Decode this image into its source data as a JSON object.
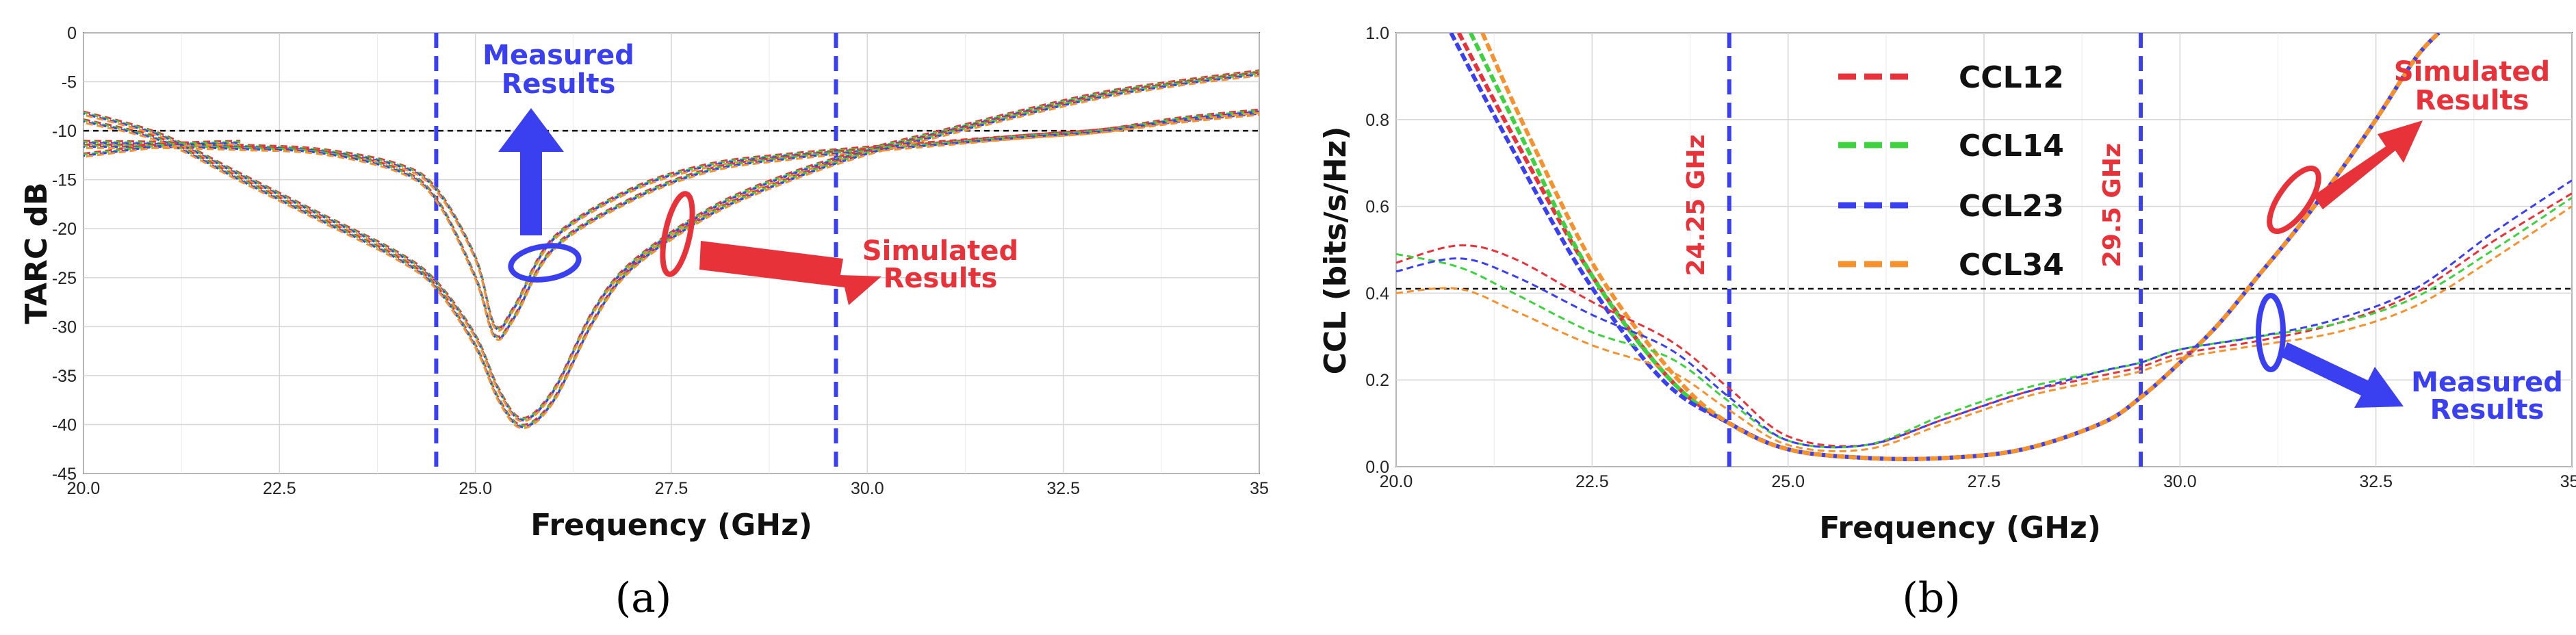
{
  "chart_data": [
    {
      "id": "a",
      "type": "line",
      "panel_label": "(a)",
      "xlabel": "Frequency (GHz)",
      "ylabel": "TARC dB",
      "xlim": [
        20,
        35
      ],
      "ylim": [
        -45,
        0
      ],
      "xticks": [
        "20.0",
        "22.5",
        "25.0",
        "27.5",
        "30.0",
        "32.5",
        "35"
      ],
      "yticks": [
        "0",
        "-5",
        "-10",
        "-15",
        "-20",
        "-25",
        "-30",
        "-35",
        "-40",
        "-45"
      ],
      "grid": true,
      "reference_line": {
        "y": -10,
        "color": "#111111",
        "style": "dashed"
      },
      "vlines": [
        {
          "x": 24.5,
          "color": "#3a3ff0"
        },
        {
          "x": 29.6,
          "color": "#3a3ff0"
        }
      ],
      "annotations": [
        {
          "text_lines": [
            "Measured",
            "Results"
          ],
          "color": "#3a3ff0",
          "group": "measured"
        },
        {
          "text_lines": [
            "Simulated",
            "Results"
          ],
          "color": "#e8323a",
          "group": "simulated"
        }
      ],
      "curve_colors": [
        "#e8323a",
        "#3fd13f",
        "#3a3ff0",
        "#f5922e"
      ],
      "series": [
        {
          "group": "measured-1",
          "x": [
            20,
            21,
            22,
            23,
            24,
            24.5,
            25,
            25.25,
            25.5,
            26,
            27,
            28,
            29,
            30,
            31,
            32,
            33,
            34,
            35
          ],
          "y": [
            -11.2,
            -11.3,
            -11.6,
            -12,
            -13.5,
            -16,
            -23,
            -30,
            -28,
            -21,
            -16,
            -13.5,
            -12.5,
            -11.8,
            -11.2,
            -10.6,
            -10,
            -9,
            -8.2
          ]
        },
        {
          "group": "measured-2",
          "x": [
            20,
            21,
            22,
            23,
            24,
            24.5,
            25,
            25.25,
            25.5,
            26,
            27,
            28,
            29,
            30,
            31,
            32,
            33,
            34,
            35
          ],
          "y": [
            -11.6,
            -11.6,
            -11.8,
            -12.2,
            -14,
            -17,
            -25,
            -31,
            -29,
            -22,
            -17,
            -14,
            -12.8,
            -12,
            -11.3,
            -10.6,
            -10,
            -8.8,
            -8.0
          ]
        },
        {
          "group": "simulated-1",
          "x": [
            20,
            21,
            22,
            23,
            24,
            24.5,
            25,
            25.3,
            25.6,
            26,
            26.5,
            27,
            28,
            29,
            30,
            31,
            32,
            33,
            34,
            35
          ],
          "y": [
            -8.2,
            -10.5,
            -14.5,
            -18.5,
            -22.5,
            -25.5,
            -31,
            -36.5,
            -39.5,
            -36.5,
            -28.5,
            -23.5,
            -18,
            -14.5,
            -12,
            -10,
            -8,
            -6.2,
            -5,
            -4.0
          ]
        },
        {
          "group": "simulated-2",
          "x": [
            20,
            21,
            22,
            23,
            24,
            24.5,
            25,
            25.3,
            25.6,
            26,
            26.5,
            27,
            28,
            29,
            30,
            31,
            32,
            33,
            34,
            35
          ],
          "y": [
            -9,
            -11,
            -15,
            -19,
            -23,
            -26,
            -32,
            -37.5,
            -40.2,
            -37.5,
            -29.5,
            -24,
            -18.5,
            -15,
            -12.3,
            -10.3,
            -8.3,
            -6.5,
            -5.2,
            -4.2
          ]
        },
        {
          "group": "simulated-3",
          "x": [
            20,
            20.5,
            21,
            21.5,
            22
          ],
          "y": [
            -12.5,
            -12,
            -11.5,
            -11.3,
            -11.2
          ]
        }
      ]
    },
    {
      "id": "b",
      "type": "line",
      "panel_label": "(b)",
      "xlabel": "Frequency (GHz)",
      "ylabel": "CCL (bits/s/Hz)",
      "xlim": [
        20,
        35
      ],
      "ylim": [
        0,
        1
      ],
      "xticks": [
        "20.0",
        "22.5",
        "25.0",
        "27.5",
        "30.0",
        "32.5",
        "35."
      ],
      "yticks": [
        "0.0",
        "0.2",
        "0.4",
        "0.6",
        "0.8",
        "1.0"
      ],
      "grid": true,
      "reference_line": {
        "y": 0.41,
        "color": "#111111",
        "style": "dashed"
      },
      "vlines": [
        {
          "x": 24.25,
          "color": "#3a3ff0",
          "label": "24.25 GHz"
        },
        {
          "x": 29.5,
          "color": "#3a3ff0",
          "label": "29.5 GHz"
        }
      ],
      "legend": {
        "placement": "top-center",
        "entries": [
          {
            "name": "CCL12",
            "color": "#e8323a"
          },
          {
            "name": "CCL14",
            "color": "#3fd13f"
          },
          {
            "name": "CCL23",
            "color": "#3a3ff0"
          },
          {
            "name": "CCL34",
            "color": "#f5922e"
          }
        ]
      },
      "annotations": [
        {
          "text_lines": [
            "Simulated",
            "Results"
          ],
          "color": "#e8323a",
          "group": "simulated"
        },
        {
          "text_lines": [
            "Measured",
            "Results"
          ],
          "color": "#3a3ff0",
          "group": "measured"
        }
      ],
      "series": [
        {
          "name": "CCL12",
          "kind": "simulated",
          "x": [
            20.8,
            21.5,
            22.5,
            23.5,
            24.25,
            25,
            26,
            27,
            28,
            29,
            29.5,
            30,
            30.5,
            31,
            31.5,
            32,
            32.5,
            33,
            33.3
          ],
          "y": [
            1.0,
            0.76,
            0.44,
            0.2,
            0.1,
            0.04,
            0.02,
            0.02,
            0.04,
            0.1,
            0.16,
            0.24,
            0.33,
            0.44,
            0.55,
            0.67,
            0.8,
            0.94,
            1.0
          ]
        },
        {
          "name": "CCL14",
          "kind": "simulated",
          "x": [
            20.95,
            21.6,
            22.5,
            23.5,
            24.25,
            25,
            26,
            27,
            28,
            29,
            29.5,
            30,
            30.5,
            31,
            31.5,
            32,
            32.5,
            33,
            33.3
          ],
          "y": [
            1.0,
            0.76,
            0.44,
            0.2,
            0.1,
            0.04,
            0.02,
            0.02,
            0.04,
            0.1,
            0.16,
            0.24,
            0.33,
            0.44,
            0.55,
            0.67,
            0.8,
            0.94,
            1.0
          ]
        },
        {
          "name": "CCL23",
          "kind": "simulated",
          "x": [
            20.7,
            21.4,
            22.4,
            23.4,
            24.25,
            25,
            26,
            27,
            28,
            29,
            29.5,
            30,
            30.5,
            31,
            31.5,
            32,
            32.5,
            33,
            33.3
          ],
          "y": [
            1.0,
            0.76,
            0.44,
            0.2,
            0.1,
            0.04,
            0.02,
            0.02,
            0.04,
            0.1,
            0.16,
            0.24,
            0.33,
            0.44,
            0.55,
            0.67,
            0.8,
            0.94,
            1.0
          ]
        },
        {
          "name": "CCL34",
          "kind": "simulated",
          "x": [
            21.1,
            21.7,
            22.6,
            23.6,
            24.25,
            25,
            26,
            27,
            28,
            29,
            29.5,
            30,
            30.5,
            31,
            31.5,
            32,
            32.5,
            33,
            33.3
          ],
          "y": [
            1.0,
            0.76,
            0.44,
            0.2,
            0.1,
            0.04,
            0.02,
            0.02,
            0.04,
            0.1,
            0.16,
            0.24,
            0.33,
            0.44,
            0.55,
            0.67,
            0.8,
            0.94,
            1.0
          ]
        },
        {
          "name": "CCL12",
          "kind": "measured",
          "x": [
            20,
            20.8,
            21.5,
            22.5,
            23.5,
            24.25,
            25,
            26,
            27,
            28,
            29,
            29.5,
            30,
            31,
            32,
            33,
            34,
            35
          ],
          "y": [
            0.47,
            0.51,
            0.48,
            0.38,
            0.29,
            0.18,
            0.07,
            0.05,
            0.11,
            0.17,
            0.21,
            0.23,
            0.26,
            0.29,
            0.33,
            0.4,
            0.52,
            0.63
          ]
        },
        {
          "name": "CCL14",
          "kind": "measured",
          "x": [
            20,
            20.8,
            21.5,
            22.5,
            23.5,
            24.25,
            25,
            26,
            27,
            28,
            29,
            29.5,
            30,
            31,
            32,
            33,
            34,
            35
          ],
          "y": [
            0.49,
            0.46,
            0.4,
            0.31,
            0.25,
            0.15,
            0.06,
            0.05,
            0.12,
            0.18,
            0.22,
            0.24,
            0.27,
            0.3,
            0.33,
            0.39,
            0.5,
            0.62
          ]
        },
        {
          "name": "CCL23",
          "kind": "measured",
          "x": [
            20,
            20.8,
            21.5,
            22.5,
            23.5,
            24.25,
            25,
            26,
            27,
            28,
            29,
            29.5,
            30,
            31,
            32,
            33,
            34,
            35
          ],
          "y": [
            0.45,
            0.48,
            0.44,
            0.35,
            0.27,
            0.16,
            0.06,
            0.05,
            0.11,
            0.17,
            0.22,
            0.24,
            0.27,
            0.3,
            0.34,
            0.41,
            0.54,
            0.66
          ]
        },
        {
          "name": "CCL34",
          "kind": "measured",
          "x": [
            20,
            20.8,
            21.5,
            22.5,
            23.5,
            24.25,
            25,
            26,
            27,
            28,
            29,
            29.5,
            30,
            31,
            32,
            33,
            34,
            35
          ],
          "y": [
            0.4,
            0.41,
            0.36,
            0.28,
            0.22,
            0.13,
            0.05,
            0.04,
            0.1,
            0.16,
            0.2,
            0.22,
            0.25,
            0.28,
            0.31,
            0.37,
            0.48,
            0.6
          ]
        }
      ]
    }
  ]
}
